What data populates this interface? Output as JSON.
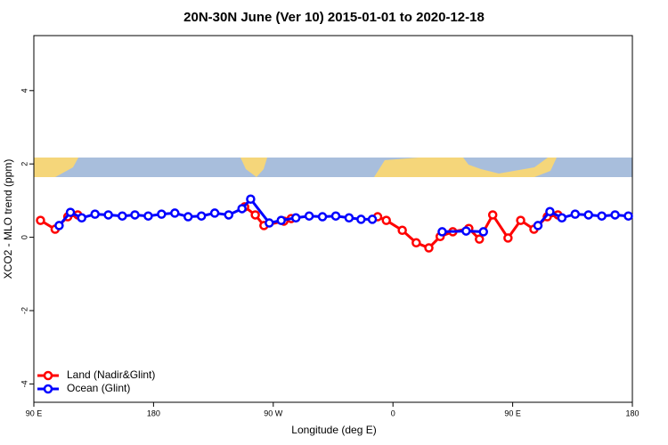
{
  "chart_data": {
    "type": "line",
    "title": "20N-30N June (Ver 10)   2015-01-01 to 2020-12-18",
    "x_label": "Longitude (deg E)",
    "y_label": "XCO2 - MLO trend (ppm)",
    "xlim": [
      90,
      540
    ],
    "ylim": [
      -4.5,
      5.5
    ],
    "xticks": [
      {
        "value": 90,
        "label": "90 E"
      },
      {
        "value": 180,
        "label": "180"
      },
      {
        "value": 270,
        "label": "90 W"
      },
      {
        "value": 360,
        "label": "0"
      },
      {
        "value": 450,
        "label": "90 E"
      },
      {
        "value": 540,
        "label": "180"
      }
    ],
    "yticks": [
      -4,
      -2,
      0,
      2,
      4
    ],
    "legend": "bottom-left",
    "series": [
      {
        "name": "Land (Nadir&Glint)",
        "color": "#ff0000",
        "x": [
          95,
          106,
          115.5,
          123,
          null,
          248.5,
          256.5,
          263,
          278,
          283.5,
          null,
          348.5,
          355,
          367,
          377.5,
          387,
          395.5,
          405,
          417,
          425,
          435,
          446.5,
          456,
          466,
          476,
          484
        ],
        "values": [
          0.46,
          0.22,
          0.56,
          0.61,
          null,
          0.83,
          0.61,
          0.32,
          0.44,
          0.51,
          null,
          0.56,
          0.46,
          0.19,
          -0.15,
          -0.29,
          0.02,
          0.15,
          0.24,
          -0.05,
          0.61,
          -0.02,
          0.46,
          0.22,
          0.56,
          0.61
        ]
      },
      {
        "name": "Ocean (Glint)",
        "color": "#0000ff",
        "x": [
          109,
          117.5,
          126,
          136,
          146,
          156.5,
          166,
          176,
          186,
          196,
          206,
          216,
          226,
          236.5,
          246.5,
          253,
          267,
          276,
          287,
          297,
          307,
          317,
          327,
          336,
          344.5,
          null,
          397,
          415,
          428,
          null,
          469,
          478,
          487,
          497,
          507,
          517,
          527,
          537
        ],
        "values": [
          0.32,
          0.68,
          0.53,
          0.63,
          0.61,
          0.58,
          0.61,
          0.58,
          0.63,
          0.66,
          0.56,
          0.58,
          0.66,
          0.61,
          0.78,
          1.04,
          0.39,
          0.46,
          0.53,
          0.58,
          0.56,
          0.58,
          0.53,
          0.49,
          0.49,
          null,
          0.15,
          0.17,
          0.15,
          null,
          0.32,
          0.7,
          0.53,
          0.63,
          0.61,
          0.58,
          0.61,
          0.58
        ]
      }
    ]
  }
}
